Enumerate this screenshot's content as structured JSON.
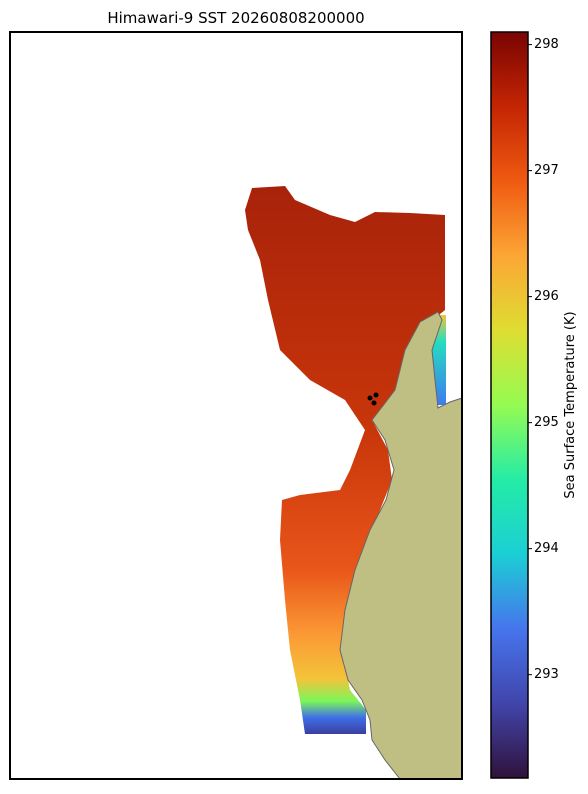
{
  "chart_data": {
    "type": "map",
    "title": "Himawari-9 SST 20260808200000",
    "colorbar": {
      "label": "Sea Surface Temperature (K)",
      "colormap": "turbo",
      "lim": [
        292.18,
        298.1
      ],
      "ticks": [
        293,
        294,
        295,
        296,
        297,
        298
      ]
    }
  }
}
